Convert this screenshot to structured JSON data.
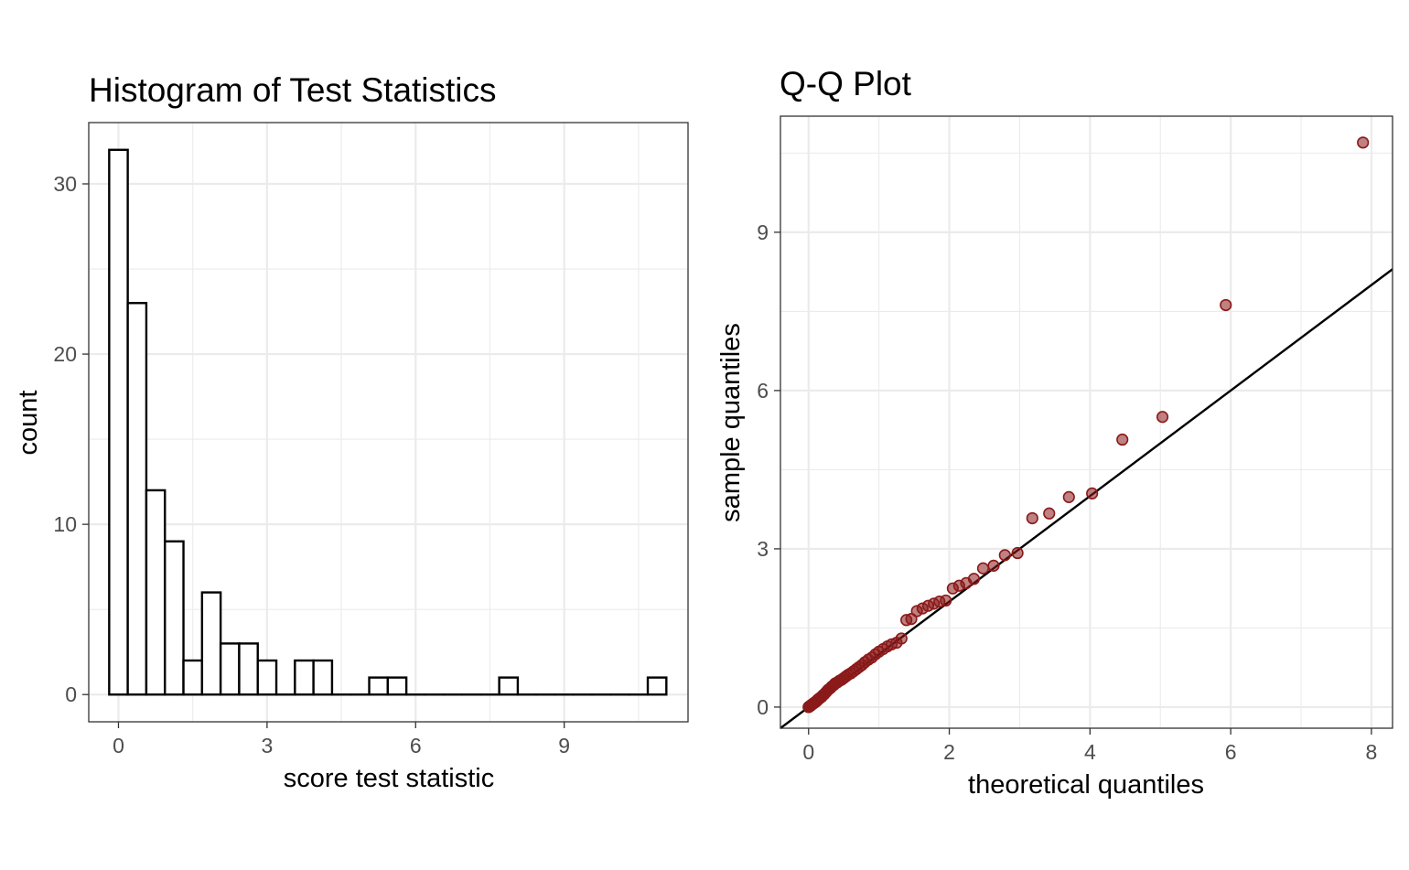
{
  "chart_data": [
    {
      "type": "bar",
      "title": "Histogram of Test Statistics",
      "xlabel": "score test statistic",
      "ylabel": "count",
      "bin_width": 0.375,
      "bins": [
        {
          "x": 0.0,
          "count": 32
        },
        {
          "x": 0.375,
          "count": 23
        },
        {
          "x": 0.75,
          "count": 12
        },
        {
          "x": 1.125,
          "count": 9
        },
        {
          "x": 1.5,
          "count": 2
        },
        {
          "x": 1.875,
          "count": 6
        },
        {
          "x": 2.25,
          "count": 3
        },
        {
          "x": 2.625,
          "count": 3
        },
        {
          "x": 3.0,
          "count": 2
        },
        {
          "x": 3.375,
          "count": 0
        },
        {
          "x": 3.75,
          "count": 2
        },
        {
          "x": 4.125,
          "count": 2
        },
        {
          "x": 4.5,
          "count": 0
        },
        {
          "x": 4.875,
          "count": 0
        },
        {
          "x": 5.25,
          "count": 1
        },
        {
          "x": 5.625,
          "count": 1
        },
        {
          "x": 6.0,
          "count": 0
        },
        {
          "x": 6.375,
          "count": 0
        },
        {
          "x": 6.75,
          "count": 0
        },
        {
          "x": 7.125,
          "count": 0
        },
        {
          "x": 7.5,
          "count": 0
        },
        {
          "x": 7.875,
          "count": 1
        },
        {
          "x": 8.25,
          "count": 0
        },
        {
          "x": 8.625,
          "count": 0
        },
        {
          "x": 9.0,
          "count": 0
        },
        {
          "x": 9.375,
          "count": 0
        },
        {
          "x": 9.75,
          "count": 0
        },
        {
          "x": 10.125,
          "count": 0
        },
        {
          "x": 10.5,
          "count": 0
        },
        {
          "x": 10.875,
          "count": 1
        }
      ],
      "xlim": [
        -0.6,
        11.5
      ],
      "ylim": [
        -1.6,
        33.6
      ],
      "xticks": [
        0,
        3,
        6,
        9
      ],
      "yticks": [
        0,
        10,
        20,
        30
      ],
      "grid": true,
      "colors": {
        "bar_fill": "#ffffff",
        "bar_stroke": "#000000"
      }
    },
    {
      "type": "scatter",
      "title": "Q-Q Plot",
      "xlabel": "theoretical quantiles",
      "ylabel": "sample quantiles",
      "points": [
        [
          0.0,
          0.0
        ],
        [
          0.005,
          0.005
        ],
        [
          0.01,
          0.01
        ],
        [
          0.015,
          0.015
        ],
        [
          0.02,
          0.02
        ],
        [
          0.025,
          0.025
        ],
        [
          0.03,
          0.03
        ],
        [
          0.035,
          0.035
        ],
        [
          0.04,
          0.04
        ],
        [
          0.05,
          0.05
        ],
        [
          0.06,
          0.06
        ],
        [
          0.07,
          0.07
        ],
        [
          0.08,
          0.08
        ],
        [
          0.09,
          0.09
        ],
        [
          0.1,
          0.1
        ],
        [
          0.11,
          0.11
        ],
        [
          0.12,
          0.12
        ],
        [
          0.13,
          0.14
        ],
        [
          0.14,
          0.15
        ],
        [
          0.15,
          0.16
        ],
        [
          0.16,
          0.17
        ],
        [
          0.17,
          0.18
        ],
        [
          0.19,
          0.2
        ],
        [
          0.2,
          0.22
        ],
        [
          0.22,
          0.24
        ],
        [
          0.24,
          0.27
        ],
        [
          0.26,
          0.3
        ],
        [
          0.28,
          0.33
        ],
        [
          0.31,
          0.36
        ],
        [
          0.33,
          0.39
        ],
        [
          0.36,
          0.42
        ],
        [
          0.38,
          0.45
        ],
        [
          0.41,
          0.47
        ],
        [
          0.44,
          0.5
        ],
        [
          0.47,
          0.52
        ],
        [
          0.5,
          0.55
        ],
        [
          0.53,
          0.58
        ],
        [
          0.56,
          0.61
        ],
        [
          0.6,
          0.64
        ],
        [
          0.64,
          0.68
        ],
        [
          0.68,
          0.72
        ],
        [
          0.72,
          0.76
        ],
        [
          0.76,
          0.8
        ],
        [
          0.8,
          0.85
        ],
        [
          0.85,
          0.9
        ],
        [
          0.9,
          0.94
        ],
        [
          0.95,
          1.0
        ],
        [
          1.0,
          1.05
        ],
        [
          1.06,
          1.1
        ],
        [
          1.12,
          1.15
        ],
        [
          1.18,
          1.19
        ],
        [
          1.25,
          1.22
        ],
        [
          1.32,
          1.3
        ],
        [
          1.39,
          1.65
        ],
        [
          1.46,
          1.67
        ],
        [
          1.54,
          1.82
        ],
        [
          1.62,
          1.87
        ],
        [
          1.7,
          1.92
        ],
        [
          1.78,
          1.96
        ],
        [
          1.86,
          2.0
        ],
        [
          1.95,
          2.02
        ],
        [
          2.05,
          2.25
        ],
        [
          2.14,
          2.3
        ],
        [
          2.24,
          2.35
        ],
        [
          2.35,
          2.43
        ],
        [
          2.48,
          2.63
        ],
        [
          2.63,
          2.68
        ],
        [
          2.79,
          2.88
        ],
        [
          2.97,
          2.92
        ],
        [
          3.18,
          3.58
        ],
        [
          3.42,
          3.67
        ],
        [
          3.7,
          3.98
        ],
        [
          4.03,
          4.05
        ],
        [
          4.46,
          5.07
        ],
        [
          5.03,
          5.5
        ],
        [
          5.93,
          7.62
        ],
        [
          7.88,
          10.7
        ]
      ],
      "reference_line": {
        "intercept": 0,
        "slope": 1
      },
      "xlim": [
        -0.4,
        8.3
      ],
      "ylim": [
        -0.4,
        11.2
      ],
      "xticks": [
        0,
        2,
        4,
        6,
        8
      ],
      "yticks": [
        0,
        3,
        6,
        9
      ],
      "grid": true,
      "colors": {
        "point_fill": "#8b1a1a",
        "point_stroke": "#8b1a1a",
        "line": "#000000"
      }
    }
  ]
}
